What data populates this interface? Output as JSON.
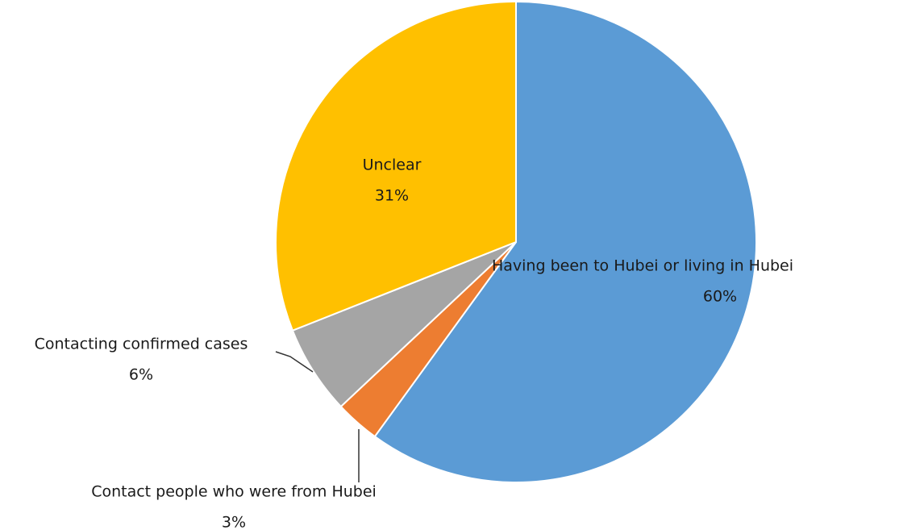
{
  "chart_data": {
    "type": "pie",
    "categories": [
      "Having been to Hubei or living in Hubei",
      "Contact people who were from Hubei",
      "Contacting confirmed cases",
      "Unclear"
    ],
    "values": [
      60,
      3,
      6,
      31
    ],
    "value_labels": [
      "60%",
      "3%",
      "6%",
      "31%"
    ],
    "colors": [
      "#5b9bd5",
      "#ed7d31",
      "#a5a5a5",
      "#ffc000"
    ]
  }
}
